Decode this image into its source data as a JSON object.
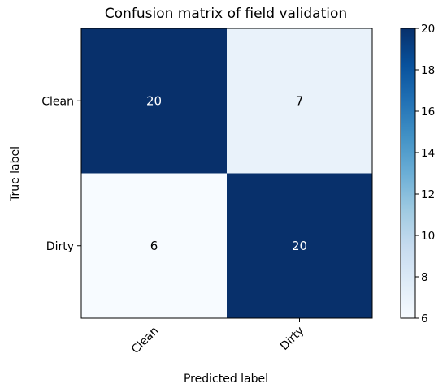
{
  "chart_data": {
    "type": "heatmap",
    "title": "Confusion matrix of field validation",
    "xlabel": "Predicted label",
    "ylabel": "True label",
    "x_categories": [
      "Clean",
      "Dirty"
    ],
    "y_categories": [
      "Clean",
      "Dirty"
    ],
    "matrix": [
      [
        20,
        7
      ],
      [
        6,
        20
      ]
    ],
    "colormap": "Blues",
    "color_low": "#f7fbff",
    "color_high": "#08306b",
    "text_color_dark_cell": "#ffffff",
    "text_color_light_cell": "#000000",
    "colorbar": {
      "range": [
        6,
        20
      ],
      "ticks": [
        "6",
        "8",
        "10",
        "12",
        "14",
        "16",
        "18",
        "20"
      ]
    },
    "x_tick_rotation_deg": 45,
    "grid": false
  }
}
